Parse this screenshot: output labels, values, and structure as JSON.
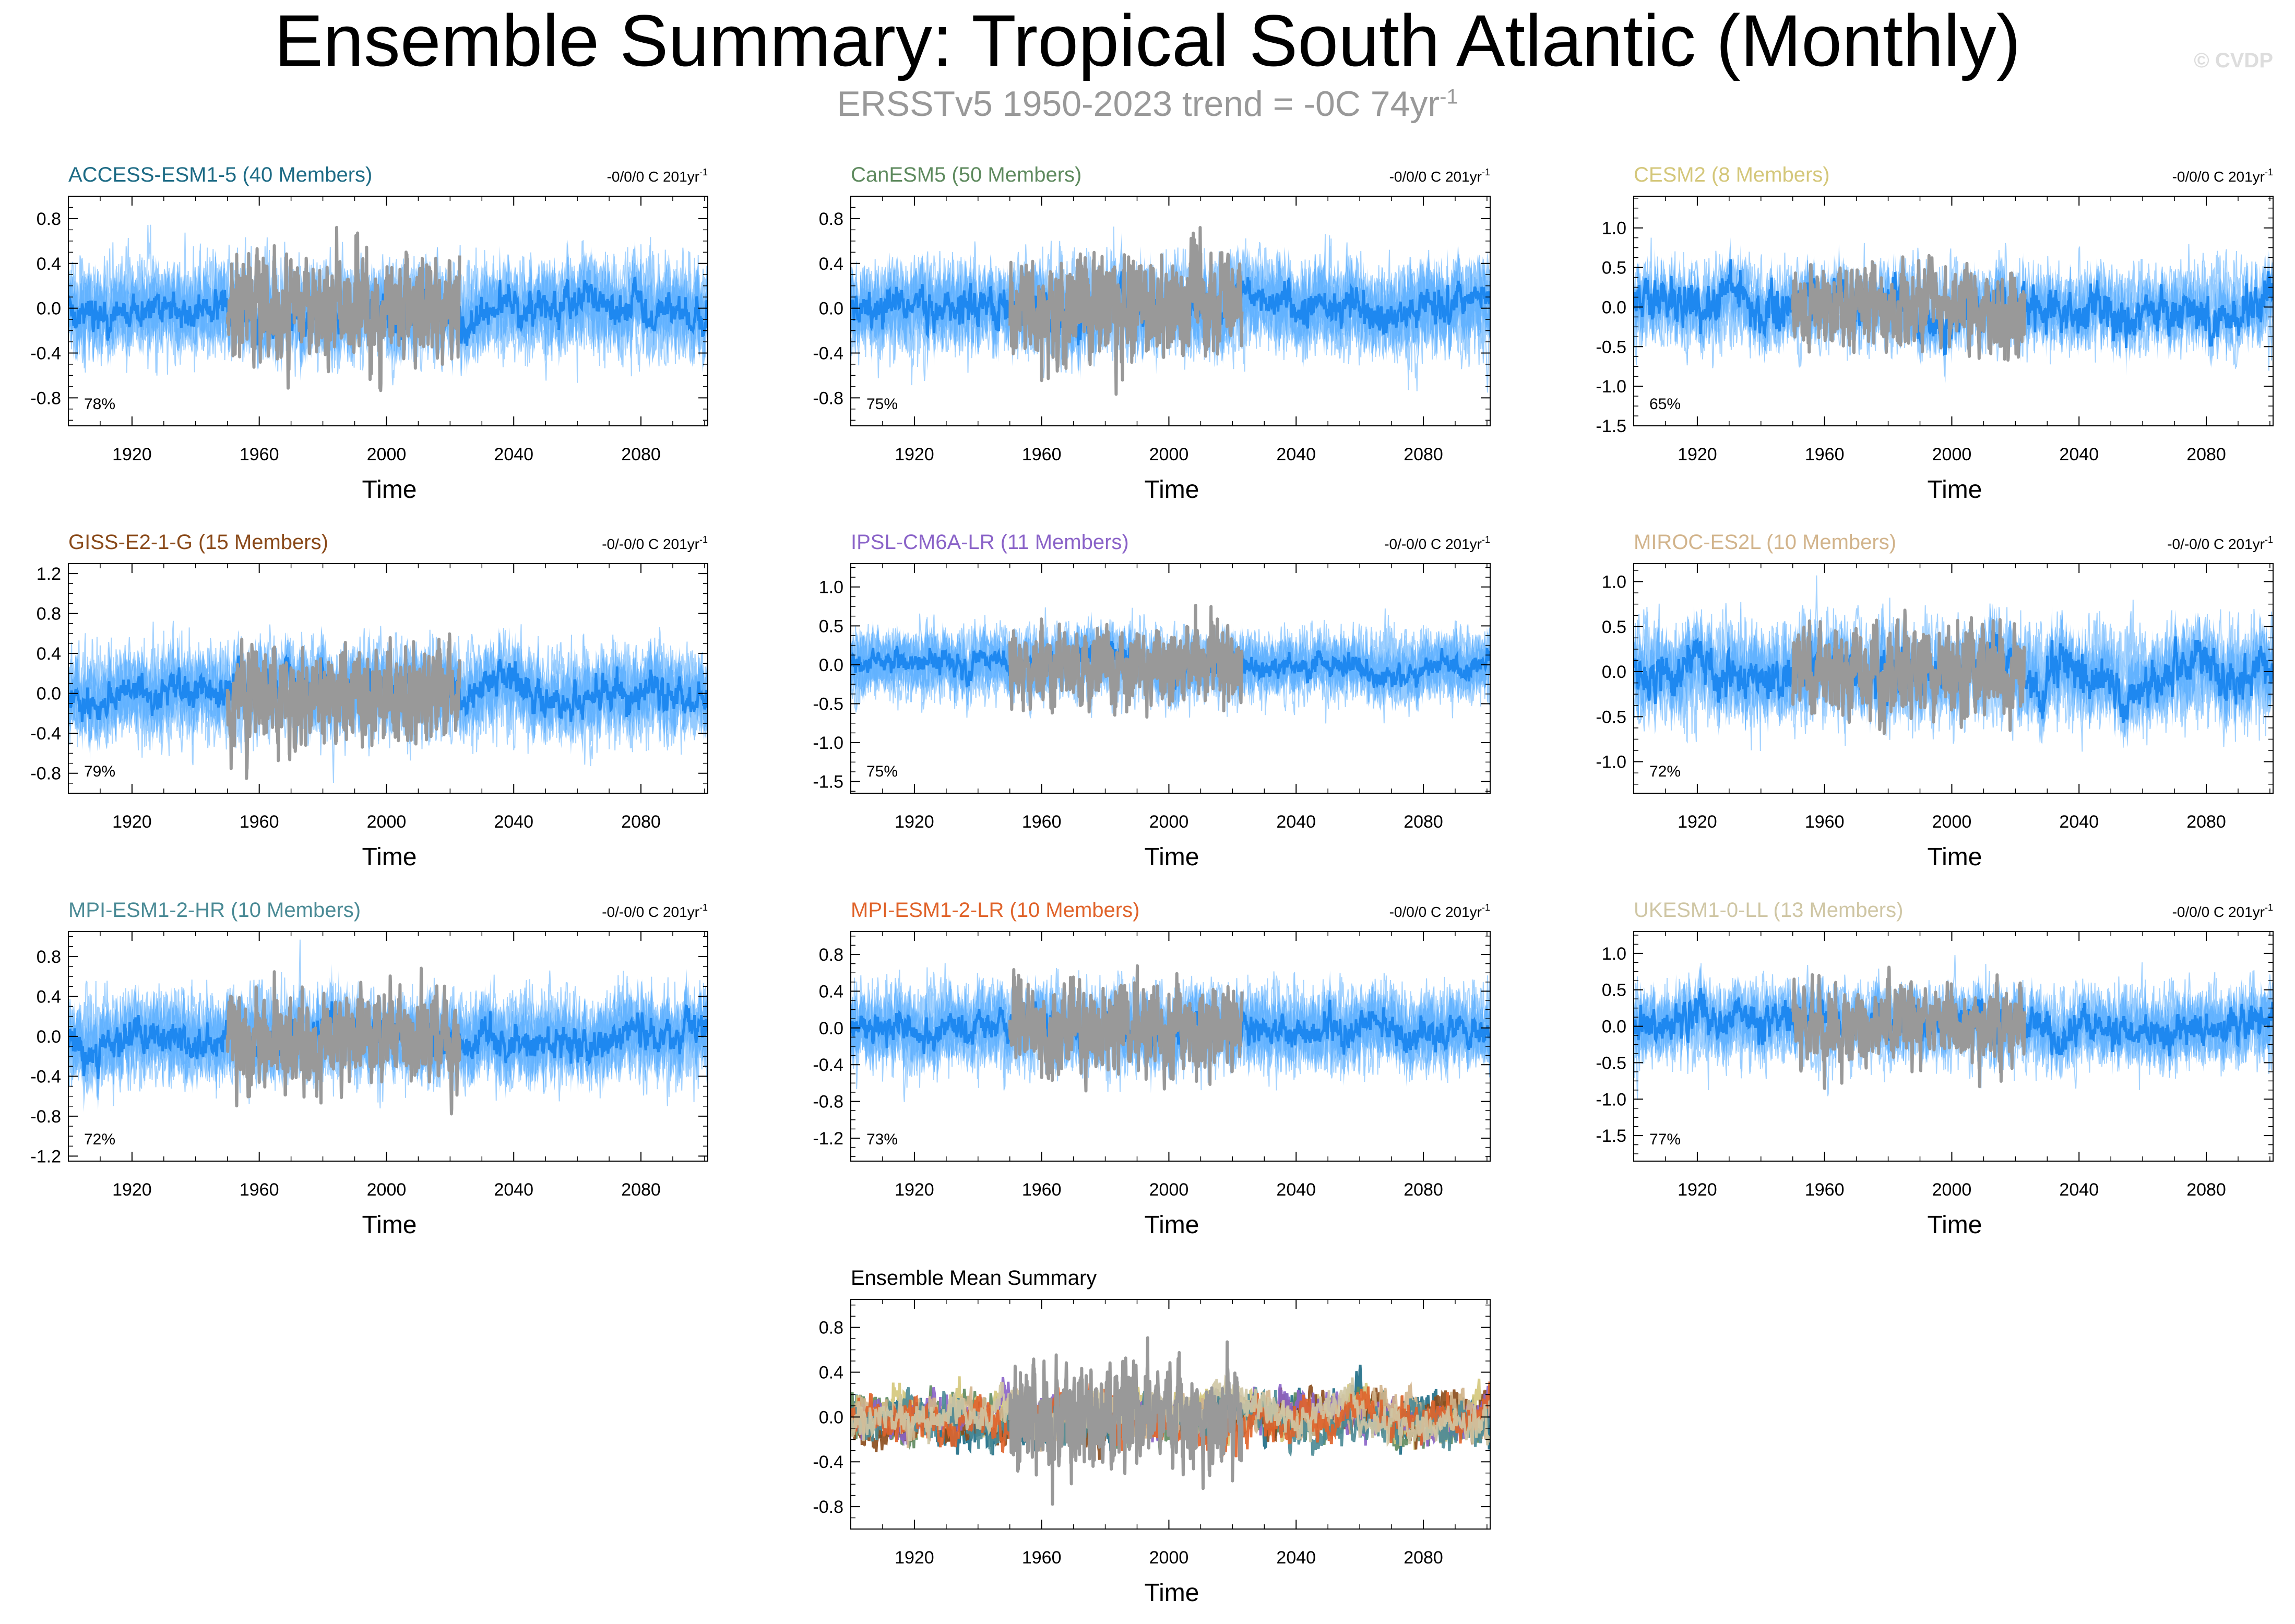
{
  "title": "Ensemble Summary: Tropical South Atlantic (Monthly)",
  "subtitle": {
    "prefix": "ERSSTv5 1950-2023 trend = -0C 74yr",
    "exponent": "-1"
  },
  "watermark": "© CVDP",
  "colors": {
    "member_spread": "#8fc8ff",
    "ensemble_band": "#3ea0ff",
    "ensemble_mean": "#1e88f0",
    "observations": "#999999"
  },
  "chart_data": [
    {
      "type": "line",
      "title": "ACCESS-ESM1-5 (40 Members)",
      "title_color": "#1d6b85",
      "trend_prefix": "-0/0/0 C 201yr",
      "trend_exponent": "-1",
      "pct": "78%",
      "xlabel": "Time",
      "xlim": [
        1900,
        2101
      ],
      "ylim": [
        -1.05,
        1.0
      ],
      "yticks": [
        "-0.8",
        "-0.4",
        "0.0",
        "0.4",
        "0.8"
      ],
      "ytick_values": [
        -0.8,
        -0.4,
        0.0,
        0.4,
        0.8
      ],
      "xticks": [
        "1920",
        "1960",
        "2000",
        "2040",
        "2080"
      ],
      "xtick_values": [
        1920,
        1960,
        2000,
        2040,
        2080
      ],
      "obs_range": [
        1950,
        2023
      ],
      "obs_amp": 0.95,
      "spread": 0.45,
      "mean_amp": 0.2,
      "seed": 11
    },
    {
      "type": "line",
      "title": "CanESM5 (50 Members)",
      "title_color": "#5e8a5e",
      "trend_prefix": "-0/0/0 C 201yr",
      "trend_exponent": "-1",
      "pct": "75%",
      "xlabel": "Time",
      "xlim": [
        1900,
        2101
      ],
      "ylim": [
        -1.05,
        1.0
      ],
      "yticks": [
        "-0.8",
        "-0.4",
        "0.0",
        "0.4",
        "0.8"
      ],
      "ytick_values": [
        -0.8,
        -0.4,
        0.0,
        0.4,
        0.8
      ],
      "xticks": [
        "1920",
        "1960",
        "2000",
        "2040",
        "2080"
      ],
      "xtick_values": [
        1920,
        1960,
        2000,
        2040,
        2080
      ],
      "obs_range": [
        1950,
        2023
      ],
      "obs_amp": 0.95,
      "spread": 0.45,
      "mean_amp": 0.2,
      "seed": 23
    },
    {
      "type": "line",
      "title": "CESM2 (8 Members)",
      "title_color": "#d4c77a",
      "trend_prefix": "-0/0/0 C 201yr",
      "trend_exponent": "-1",
      "pct": "65%",
      "xlabel": "Time",
      "xlim": [
        1900,
        2101
      ],
      "ylim": [
        -1.5,
        1.4
      ],
      "yticks": [
        "-1.5",
        "-1.0",
        "-0.5",
        "0.0",
        "0.5",
        "1.0"
      ],
      "ytick_values": [
        -1.5,
        -1.0,
        -0.5,
        0.0,
        0.5,
        1.0
      ],
      "xticks": [
        "1920",
        "1960",
        "2000",
        "2040",
        "2080"
      ],
      "xtick_values": [
        1920,
        1960,
        2000,
        2040,
        2080
      ],
      "obs_range": [
        1950,
        2023
      ],
      "obs_amp": 1.0,
      "spread": 0.55,
      "mean_amp": 0.35,
      "seed": 37
    },
    {
      "type": "line",
      "title": "GISS-E2-1-G (15 Members)",
      "title_color": "#8a4a1a",
      "trend_prefix": "-0/-0/0 C 201yr",
      "trend_exponent": "-1",
      "pct": "79%",
      "xlabel": "Time",
      "xlim": [
        1900,
        2101
      ],
      "ylim": [
        -1.0,
        1.3
      ],
      "yticks": [
        "-0.8",
        "-0.4",
        "0.0",
        "0.4",
        "0.8",
        "1.2"
      ],
      "ytick_values": [
        -0.8,
        -0.4,
        0.0,
        0.4,
        0.8,
        1.2
      ],
      "xticks": [
        "1920",
        "1960",
        "2000",
        "2040",
        "2080"
      ],
      "xtick_values": [
        1920,
        1960,
        2000,
        2040,
        2080
      ],
      "obs_range": [
        1950,
        2023
      ],
      "obs_amp": 0.95,
      "spread": 0.5,
      "mean_amp": 0.22,
      "seed": 41
    },
    {
      "type": "line",
      "title": "IPSL-CM6A-LR (11 Members)",
      "title_color": "#8a63c8",
      "trend_prefix": "-0/-0/0 C 201yr",
      "trend_exponent": "-1",
      "pct": "75%",
      "xlabel": "Time",
      "xlim": [
        1900,
        2101
      ],
      "ylim": [
        -1.65,
        1.3
      ],
      "yticks": [
        "-1.5",
        "-1.0",
        "-0.5",
        "0.0",
        "0.5",
        "1.0"
      ],
      "ytick_values": [
        -1.5,
        -1.0,
        -0.5,
        0.0,
        0.5,
        1.0
      ],
      "xticks": [
        "1920",
        "1960",
        "2000",
        "2040",
        "2080"
      ],
      "xtick_values": [
        1920,
        1960,
        2000,
        2040,
        2080
      ],
      "obs_range": [
        1950,
        2023
      ],
      "obs_amp": 1.0,
      "spread": 0.5,
      "mean_amp": 0.2,
      "seed": 53
    },
    {
      "type": "line",
      "title": "MIROC-ES2L (10 Members)",
      "title_color": "#d2b48c",
      "trend_prefix": "-0/-0/0 C 201yr",
      "trend_exponent": "-1",
      "pct": "72%",
      "xlabel": "Time",
      "xlim": [
        1900,
        2101
      ],
      "ylim": [
        -1.35,
        1.2
      ],
      "yticks": [
        "-1.0",
        "-0.5",
        "0.0",
        "0.5",
        "1.0"
      ],
      "ytick_values": [
        -1.0,
        -0.5,
        0.0,
        0.5,
        1.0
      ],
      "xticks": [
        "1920",
        "1960",
        "2000",
        "2040",
        "2080"
      ],
      "xtick_values": [
        1920,
        1960,
        2000,
        2040,
        2080
      ],
      "obs_range": [
        1950,
        2023
      ],
      "obs_amp": 1.0,
      "spread": 0.6,
      "mean_amp": 0.3,
      "seed": 67
    },
    {
      "type": "line",
      "title": "MPI-ESM1-2-HR (10 Members)",
      "title_color": "#4a8a95",
      "trend_prefix": "-0/-0/0 C 201yr",
      "trend_exponent": "-1",
      "pct": "72%",
      "xlabel": "Time",
      "xlim": [
        1900,
        2101
      ],
      "ylim": [
        -1.25,
        1.05
      ],
      "yticks": [
        "-1.2",
        "-0.8",
        "-0.4",
        "0.0",
        "0.4",
        "0.8"
      ],
      "ytick_values": [
        -1.2,
        -0.8,
        -0.4,
        0.0,
        0.4,
        0.8
      ],
      "xticks": [
        "1920",
        "1960",
        "2000",
        "2040",
        "2080"
      ],
      "xtick_values": [
        1920,
        1960,
        2000,
        2040,
        2080
      ],
      "obs_range": [
        1950,
        2023
      ],
      "obs_amp": 0.95,
      "spread": 0.5,
      "mean_amp": 0.22,
      "seed": 79
    },
    {
      "type": "line",
      "title": "MPI-ESM1-2-LR (10 Members)",
      "title_color": "#e0632a",
      "trend_prefix": "-0/0/0 C 201yr",
      "trend_exponent": "-1",
      "pct": "73%",
      "xlabel": "Time",
      "xlim": [
        1900,
        2101
      ],
      "ylim": [
        -1.45,
        1.05
      ],
      "yticks": [
        "-1.2",
        "-0.8",
        "-0.4",
        "0.0",
        "0.4",
        "0.8"
      ],
      "ytick_values": [
        -1.2,
        -0.8,
        -0.4,
        0.0,
        0.4,
        0.8
      ],
      "xticks": [
        "1920",
        "1960",
        "2000",
        "2040",
        "2080"
      ],
      "xtick_values": [
        1920,
        1960,
        2000,
        2040,
        2080
      ],
      "obs_range": [
        1950,
        2023
      ],
      "obs_amp": 0.95,
      "spread": 0.5,
      "mean_amp": 0.22,
      "seed": 83
    },
    {
      "type": "line",
      "title": "UKESM1-0-LL (13 Members)",
      "title_color": "#cfc6a4",
      "trend_prefix": "-0/0/0 C 201yr",
      "trend_exponent": "-1",
      "pct": "77%",
      "xlabel": "Time",
      "xlim": [
        1900,
        2101
      ],
      "ylim": [
        -1.85,
        1.3
      ],
      "yticks": [
        "-1.5",
        "-1.0",
        "-0.5",
        "0.0",
        "0.5",
        "1.0"
      ],
      "ytick_values": [
        -1.5,
        -1.0,
        -0.5,
        0.0,
        0.5,
        1.0
      ],
      "xticks": [
        "1920",
        "1960",
        "2000",
        "2040",
        "2080"
      ],
      "xtick_values": [
        1920,
        1960,
        2000,
        2040,
        2080
      ],
      "obs_range": [
        1950,
        2023
      ],
      "obs_amp": 1.0,
      "spread": 0.6,
      "mean_amp": 0.3,
      "seed": 97
    },
    {
      "type": "line",
      "title": "Ensemble Mean Summary",
      "title_color": "#000000",
      "xlabel": "Time",
      "xlim": [
        1900,
        2101
      ],
      "ylim": [
        -1.0,
        1.05
      ],
      "yticks": [
        "-0.8",
        "-0.4",
        "0.0",
        "0.4",
        "0.8"
      ],
      "ytick_values": [
        -0.8,
        -0.4,
        0.0,
        0.4,
        0.8
      ],
      "xticks": [
        "1920",
        "1960",
        "2000",
        "2040",
        "2080"
      ],
      "xtick_values": [
        1920,
        1960,
        2000,
        2040,
        2080
      ],
      "obs_range": [
        1950,
        2023
      ],
      "obs_amp": 0.95,
      "seed": 101,
      "summary_series": [
        {
          "name": "ACCESS-ESM1-5",
          "color": "#1d6b85"
        },
        {
          "name": "CanESM5",
          "color": "#5e8a5e"
        },
        {
          "name": "CESM2",
          "color": "#d4c77a"
        },
        {
          "name": "GISS-E2-1-G",
          "color": "#8a4a1a"
        },
        {
          "name": "IPSL-CM6A-LR",
          "color": "#8a63c8"
        },
        {
          "name": "MIROC-ES2L",
          "color": "#d2b48c"
        },
        {
          "name": "MPI-ESM1-2-HR",
          "color": "#4a8a95"
        },
        {
          "name": "MPI-ESM1-2-LR",
          "color": "#e0632a"
        },
        {
          "name": "UKESM1-0-LL",
          "color": "#cfc6a4"
        }
      ]
    }
  ]
}
